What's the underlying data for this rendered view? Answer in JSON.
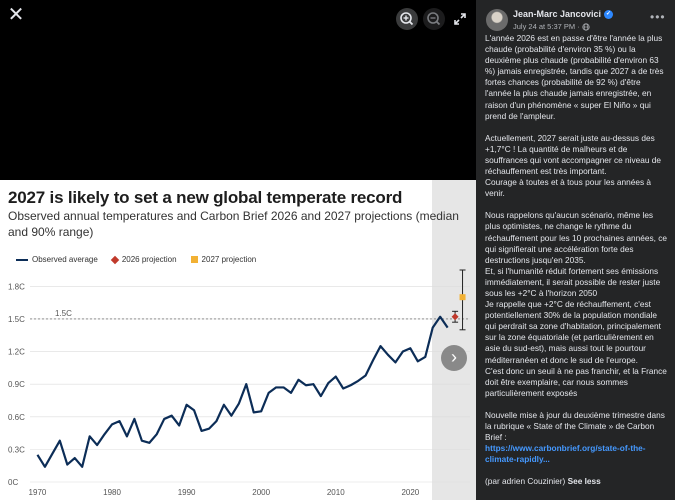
{
  "viewer": {
    "close_glyph": "✕",
    "tools": [
      {
        "name": "zoom-in-icon"
      },
      {
        "name": "zoom-out-icon"
      },
      {
        "name": "fullscreen-icon"
      }
    ]
  },
  "card": {
    "title": "2027 is likely to set a new global temperate record",
    "subtitle": "Observed annual temperatures and Carbon Brief 2026 and 2027 projections (median and 90% range)",
    "legend": [
      "Observed average",
      "2026 projection",
      "2027 projection"
    ],
    "next_glyph": "›"
  },
  "chart_data": {
    "type": "line",
    "title": "2027 is likely to set a new global temperate record",
    "subtitle": "Observed annual temperatures and Carbon Brief 2026 and 2027 projections (median and 90% range)",
    "x_ticks": [
      "1970",
      "1980",
      "1990",
      "2000",
      "2010",
      "2020"
    ],
    "y_ticks": [
      "0C",
      "0.3C",
      "0.6C",
      "0.9C",
      "1.2C",
      "1.5C",
      "1.8C"
    ],
    "xlim": [
      1969,
      2028
    ],
    "ylim": [
      0,
      1.95
    ],
    "grid": true,
    "reference_line": {
      "value": 1.5,
      "label": "1.5C"
    },
    "series": [
      {
        "name": "Observed average",
        "color": "#0c2d57",
        "x": [
          1970,
          1971,
          1972,
          1973,
          1974,
          1975,
          1976,
          1977,
          1978,
          1979,
          1980,
          1981,
          1982,
          1983,
          1984,
          1985,
          1986,
          1987,
          1988,
          1989,
          1990,
          1991,
          1992,
          1993,
          1994,
          1995,
          1996,
          1997,
          1998,
          1999,
          2000,
          2001,
          2002,
          2003,
          2004,
          2005,
          2006,
          2007,
          2008,
          2009,
          2010,
          2011,
          2012,
          2013,
          2014,
          2015,
          2016,
          2017,
          2018,
          2019,
          2020,
          2021,
          2022,
          2023,
          2024,
          2025
        ],
        "y": [
          0.25,
          0.14,
          0.26,
          0.38,
          0.16,
          0.22,
          0.14,
          0.42,
          0.34,
          0.44,
          0.53,
          0.56,
          0.42,
          0.58,
          0.38,
          0.36,
          0.44,
          0.58,
          0.61,
          0.52,
          0.71,
          0.66,
          0.47,
          0.49,
          0.56,
          0.71,
          0.61,
          0.72,
          0.9,
          0.64,
          0.65,
          0.82,
          0.87,
          0.87,
          0.82,
          0.94,
          0.89,
          0.9,
          0.79,
          0.91,
          0.97,
          0.86,
          0.89,
          0.93,
          0.98,
          1.12,
          1.25,
          1.17,
          1.1,
          1.2,
          1.23,
          1.11,
          1.15,
          1.42,
          1.52,
          1.42
        ]
      }
    ],
    "projections": [
      {
        "name": "2026 projection",
        "color": "#c0392b",
        "marker": "diamond",
        "x": 2026,
        "median": 1.52,
        "low": 1.47,
        "high": 1.57
      },
      {
        "name": "2027 projection",
        "color": "#f2b134",
        "marker": "square",
        "x": 2027,
        "median": 1.7,
        "low": 1.4,
        "high": 1.95
      }
    ]
  },
  "post": {
    "author": "Jean-Marc Jancovici",
    "meta": "July 24 at 5:37 PM · ",
    "paragraphs": [
      "L'année 2026 est en passe d'être l'année la plus chaude (probabilité d'environ 35 %) ou la deuxième plus chaude (probabilité d'environ 63 %) jamais enregistrée, tandis que 2027 a de très fortes chances (probabilité de 92 %) d'être l'année la plus chaude jamais enregistrée, en raison d'un phénomène « super El Niño » qui prend de l'ampleur.",
      "",
      "Actuellement, 2027 serait juste au-dessus des +1,7°C ! La quantité de malheurs et de souffrances qui vont accompagner ce niveau de réchauffement est très important.",
      "Courage à toutes et à tous pour les années à venir.",
      "",
      "Nous rappelons qu'aucun scénario, même les plus optimistes, ne change le rythme du réchauffement pour les 10 prochaines années, ce qui signifierait une accélération forte des destructions jusqu'en 2035.",
      "Et, si l'humanité réduit fortement ses émissions immédiatement, il serait possible de rester juste sous les +2°C à l'horizon 2050",
      "Je rappelle que +2°C de réchauffement, c'est potentiellement 30% de la population mondiale qui perdrait sa zone d'habitation, principalement sur la zone équatoriale (et particulièrement en asie du sud-est), mais aussi tout le pourtour méditerranéen et donc le sud de l'europe.",
      "C'est donc un seuil à ne pas franchir, et la France doit être exemplaire, car nous sommes particulièrement exposés",
      "",
      "Nouvelle mise à jour du deuxième trimestre dans la rubrique « State of the Climate » de Carbon Brief :"
    ],
    "link": "https://www.carbonbrief.org/state-of-the-climate-rapidly...",
    "credit": "(par adrien Couzinier)",
    "see_less": "See less"
  },
  "colors": {
    "panel_bg": "#242526",
    "text": "#e4e6eb",
    "link": "#4599ff",
    "series": "#0c2d57"
  }
}
